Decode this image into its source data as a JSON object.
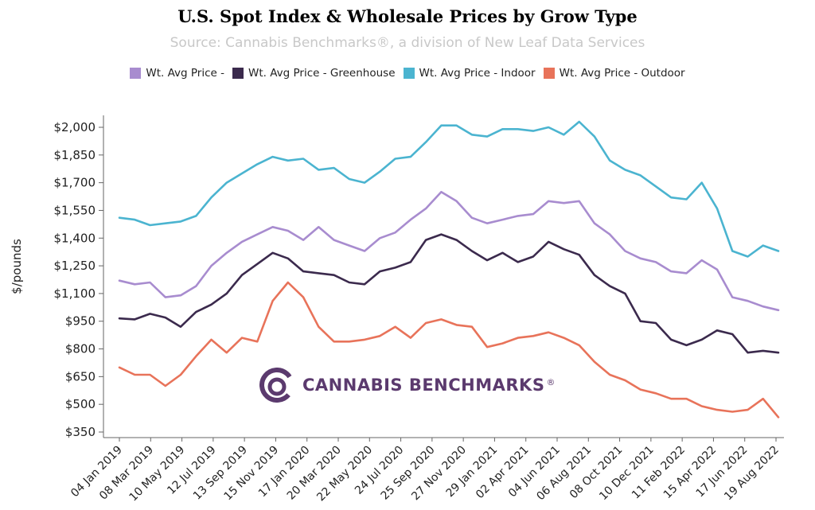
{
  "chart_data": {
    "type": "line",
    "title": "U.S. Spot Index & Wholesale Prices by Grow Type",
    "subtitle": "Source: Cannabis Benchmarks®, a division of New Leaf Data Services",
    "ylabel": "$/pounds",
    "xlabel": "",
    "ylim": [
      350,
      2050
    ],
    "yticks": [
      "$2,000",
      "$1,850",
      "$1,700",
      "$1,550",
      "$1,400",
      "$1,250",
      "$1,100",
      "$950",
      "$800",
      "$650",
      "$500",
      "$350"
    ],
    "ytick_values": [
      2000,
      1850,
      1700,
      1550,
      1400,
      1250,
      1100,
      950,
      800,
      650,
      500,
      350
    ],
    "x_tick_labels": [
      "04 Jan 2019",
      "08 Mar 2019",
      "10 May 2019",
      "12 Jul 2019",
      "13 Sep 2019",
      "15 Nov 2019",
      "17 Jan 2020",
      "20 Mar 2020",
      "22 May 2020",
      "24 Jul 2020",
      "25 Sep 2020",
      "27 Nov 2020",
      "29 Jan 2021",
      "02 Apr 2021",
      "04 Jun 2021",
      "06 Aug 2021",
      "08 Oct 2021",
      "10 Dec 2021",
      "11 Feb 2022",
      "15 Apr 2022",
      "17 Jun 2022",
      "19 Aug 2022"
    ],
    "x": [
      "04 Jan 2019",
      "08 Feb 2019",
      "08 Mar 2019",
      "12 Apr 2019",
      "10 May 2019",
      "14 Jun 2019",
      "12 Jul 2019",
      "16 Aug 2019",
      "13 Sep 2019",
      "18 Oct 2019",
      "15 Nov 2019",
      "20 Dec 2019",
      "17 Jan 2020",
      "21 Feb 2020",
      "20 Mar 2020",
      "24 Apr 2020",
      "22 May 2020",
      "26 Jun 2020",
      "24 Jul 2020",
      "28 Aug 2020",
      "25 Sep 2020",
      "30 Oct 2020",
      "27 Nov 2020",
      "01 Jan 2021",
      "29 Jan 2021",
      "05 Mar 2021",
      "02 Apr 2021",
      "07 May 2021",
      "04 Jun 2021",
      "09 Jul 2021",
      "06 Aug 2021",
      "10 Sep 2021",
      "08 Oct 2021",
      "12 Nov 2021",
      "10 Dec 2021",
      "14 Jan 2022",
      "11 Feb 2022",
      "18 Mar 2022",
      "15 Apr 2022",
      "20 May 2022",
      "17 Jun 2022",
      "22 Jul 2022",
      "19 Aug 2022",
      "09 Sep 2022"
    ],
    "series": [
      {
        "name": "Wt. Avg Price -",
        "color": "#a88ccf",
        "values": [
          1170,
          1150,
          1160,
          1080,
          1090,
          1140,
          1250,
          1320,
          1380,
          1420,
          1460,
          1440,
          1390,
          1460,
          1390,
          1360,
          1330,
          1400,
          1430,
          1500,
          1560,
          1650,
          1600,
          1510,
          1480,
          1500,
          1520,
          1530,
          1600,
          1590,
          1600,
          1480,
          1420,
          1330,
          1290,
          1270,
          1220,
          1210,
          1280,
          1230,
          1080,
          1060,
          1030,
          1010
        ]
      },
      {
        "name": "Wt. Avg Price - Greenhouse",
        "color": "#3b2a4d",
        "values": [
          965,
          960,
          990,
          970,
          920,
          1000,
          1040,
          1100,
          1200,
          1260,
          1320,
          1290,
          1220,
          1210,
          1200,
          1160,
          1150,
          1220,
          1240,
          1270,
          1390,
          1420,
          1390,
          1330,
          1280,
          1320,
          1270,
          1300,
          1380,
          1340,
          1310,
          1200,
          1140,
          1100,
          950,
          940,
          850,
          820,
          850,
          900,
          880,
          780,
          790,
          780
        ]
      },
      {
        "name": "Wt. Avg Price - Indoor",
        "color": "#4bb4d0",
        "values": [
          1510,
          1500,
          1470,
          1480,
          1490,
          1520,
          1620,
          1700,
          1750,
          1800,
          1840,
          1820,
          1830,
          1770,
          1780,
          1720,
          1700,
          1760,
          1830,
          1840,
          1920,
          2010,
          2010,
          1960,
          1950,
          1990,
          1990,
          1980,
          2000,
          1960,
          2030,
          1950,
          1820,
          1770,
          1740,
          1680,
          1620,
          1610,
          1700,
          1560,
          1330,
          1300,
          1360,
          1330
        ]
      },
      {
        "name": "Wt. Avg Price - Outdoor",
        "color": "#e8735a",
        "values": [
          700,
          660,
          660,
          600,
          660,
          760,
          850,
          780,
          860,
          840,
          1060,
          1160,
          1080,
          920,
          840,
          840,
          850,
          870,
          920,
          860,
          940,
          960,
          930,
          920,
          810,
          830,
          860,
          870,
          890,
          860,
          820,
          730,
          660,
          630,
          580,
          560,
          530,
          530,
          490,
          470,
          460,
          470,
          530,
          430
        ]
      }
    ],
    "grid": false,
    "legend_position": "top-center"
  },
  "logo": {
    "text": "CANNABIS BENCHMARKS",
    "mark": "®",
    "color": "#5b3a6e"
  }
}
